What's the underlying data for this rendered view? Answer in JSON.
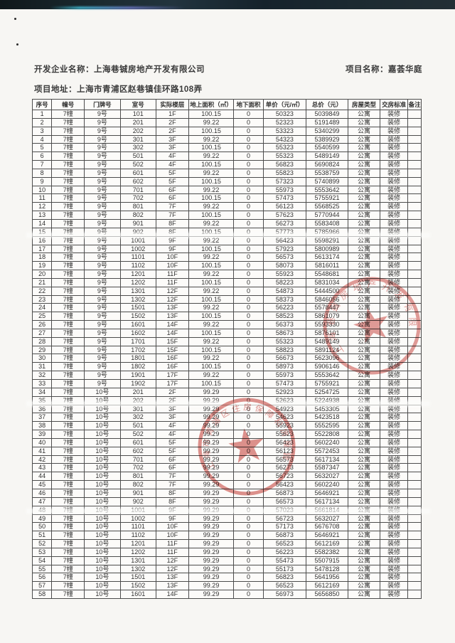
{
  "header": {
    "developer_label": "开发企业名称：",
    "developer_name": "上海巷铖房地产开发有限公司",
    "project_label": "项目名称：",
    "project_name": "嘉荟华庭",
    "address_label": "项目地址：",
    "address": "上海市青浦区赵巷镇佳环路108弄"
  },
  "stamps": [
    {
      "text": "上海巷铖房地产开发有限公司",
      "color": "#c8423c"
    },
    {
      "text": "上海市青浦区住房保障和房屋管理局",
      "color": "#c8423c"
    }
  ],
  "table": {
    "headers": [
      "序号",
      "幢号",
      "门牌号",
      "室号",
      "实际楼层",
      "地上面积（㎡）",
      "地下面积",
      "单价（元/㎡）",
      "总价（元）",
      "房屋类型",
      "交房标准",
      "备注"
    ],
    "rows": [
      [
        "1",
        "7幢",
        "9号",
        "101",
        "1F",
        "100.15",
        "0",
        "50323",
        "5039849",
        "公寓",
        "装修",
        ""
      ],
      [
        "2",
        "7幢",
        "9号",
        "201",
        "2F",
        "99.22",
        "0",
        "52323",
        "5191489",
        "公寓",
        "装修",
        ""
      ],
      [
        "3",
        "7幢",
        "9号",
        "202",
        "2F",
        "100.15",
        "0",
        "53323",
        "5340299",
        "公寓",
        "装修",
        ""
      ],
      [
        "4",
        "7幢",
        "9号",
        "301",
        "3F",
        "99.22",
        "0",
        "54323",
        "5389929",
        "公寓",
        "装修",
        ""
      ],
      [
        "5",
        "7幢",
        "9号",
        "302",
        "3F",
        "100.15",
        "0",
        "55323",
        "5540599",
        "公寓",
        "装修",
        ""
      ],
      [
        "6",
        "7幢",
        "9号",
        "501",
        "4F",
        "99.22",
        "0",
        "55323",
        "5489149",
        "公寓",
        "装修",
        ""
      ],
      [
        "7",
        "7幢",
        "9号",
        "502",
        "4F",
        "100.15",
        "0",
        "56823",
        "5690824",
        "公寓",
        "装修",
        ""
      ],
      [
        "8",
        "7幢",
        "9号",
        "601",
        "5F",
        "99.22",
        "0",
        "55823",
        "5538759",
        "公寓",
        "装修",
        ""
      ],
      [
        "9",
        "7幢",
        "9号",
        "602",
        "5F",
        "100.15",
        "0",
        "57323",
        "5740899",
        "公寓",
        "装修",
        ""
      ],
      [
        "10",
        "7幢",
        "9号",
        "701",
        "6F",
        "99.22",
        "0",
        "55973",
        "5553642",
        "公寓",
        "装修",
        ""
      ],
      [
        "11",
        "7幢",
        "9号",
        "702",
        "6F",
        "100.15",
        "0",
        "57473",
        "5755921",
        "公寓",
        "装修",
        ""
      ],
      [
        "12",
        "7幢",
        "9号",
        "801",
        "7F",
        "99.22",
        "0",
        "56123",
        "5568525",
        "公寓",
        "装修",
        ""
      ],
      [
        "13",
        "7幢",
        "9号",
        "802",
        "7F",
        "100.15",
        "0",
        "57623",
        "5770944",
        "公寓",
        "装修",
        ""
      ],
      [
        "14",
        "7幢",
        "9号",
        "901",
        "8F",
        "99.22",
        "0",
        "56273",
        "5583408",
        "公寓",
        "装修",
        ""
      ],
      [
        "15",
        "7幢",
        "9号",
        "902",
        "8F",
        "100.15",
        "0",
        "57773",
        "5785966",
        "公寓",
        "装修",
        ""
      ],
      [
        "16",
        "7幢",
        "9号",
        "1001",
        "9F",
        "99.22",
        "0",
        "56423",
        "5598291",
        "公寓",
        "装修",
        ""
      ],
      [
        "17",
        "7幢",
        "9号",
        "1002",
        "9F",
        "100.15",
        "0",
        "57923",
        "5800989",
        "公寓",
        "装修",
        ""
      ],
      [
        "18",
        "7幢",
        "9号",
        "1101",
        "10F",
        "99.22",
        "0",
        "56573",
        "5613174",
        "公寓",
        "装修",
        ""
      ],
      [
        "19",
        "7幢",
        "9号",
        "1102",
        "10F",
        "100.15",
        "0",
        "58073",
        "5816011",
        "公寓",
        "装修",
        ""
      ],
      [
        "20",
        "7幢",
        "9号",
        "1201",
        "11F",
        "99.22",
        "0",
        "55923",
        "5548681",
        "公寓",
        "装修",
        ""
      ],
      [
        "21",
        "7幢",
        "9号",
        "1202",
        "11F",
        "100.15",
        "0",
        "58223",
        "5831034",
        "公寓",
        "装修",
        ""
      ],
      [
        "22",
        "7幢",
        "9号",
        "1301",
        "12F",
        "99.22",
        "0",
        "54873",
        "5444500",
        "公寓",
        "装修",
        ""
      ],
      [
        "23",
        "7幢",
        "9号",
        "1302",
        "12F",
        "100.15",
        "0",
        "58373",
        "5846056",
        "公寓",
        "装修",
        ""
      ],
      [
        "24",
        "7幢",
        "9号",
        "1501",
        "13F",
        "99.22",
        "0",
        "56223",
        "5578447",
        "公寓",
        "装修",
        ""
      ],
      [
        "25",
        "7幢",
        "9号",
        "1502",
        "13F",
        "100.15",
        "0",
        "58523",
        "5861079",
        "公寓",
        "装修",
        ""
      ],
      [
        "26",
        "7幢",
        "9号",
        "1601",
        "14F",
        "99.22",
        "0",
        "56373",
        "5593330",
        "公寓",
        "装修",
        ""
      ],
      [
        "27",
        "7幢",
        "9号",
        "1602",
        "14F",
        "100.15",
        "0",
        "58673",
        "5876101",
        "公寓",
        "装修",
        ""
      ],
      [
        "28",
        "7幢",
        "9号",
        "1701",
        "15F",
        "99.22",
        "0",
        "55323",
        "5489149",
        "公寓",
        "装修",
        ""
      ],
      [
        "29",
        "7幢",
        "9号",
        "1702",
        "15F",
        "100.15",
        "0",
        "58823",
        "5891124",
        "公寓",
        "装修",
        ""
      ],
      [
        "30",
        "7幢",
        "9号",
        "1801",
        "16F",
        "99.22",
        "0",
        "56673",
        "5623096",
        "公寓",
        "装修",
        ""
      ],
      [
        "31",
        "7幢",
        "9号",
        "1802",
        "16F",
        "100.15",
        "0",
        "58973",
        "5906146",
        "公寓",
        "装修",
        ""
      ],
      [
        "32",
        "7幢",
        "9号",
        "1901",
        "17F",
        "99.22",
        "0",
        "55973",
        "5553642",
        "公寓",
        "装修",
        ""
      ],
      [
        "33",
        "7幢",
        "9号",
        "1902",
        "17F",
        "100.15",
        "0",
        "57473",
        "5755921",
        "公寓",
        "装修",
        ""
      ],
      [
        "34",
        "7幢",
        "10号",
        "201",
        "2F",
        "99.29",
        "0",
        "52923",
        "5254725",
        "公寓",
        "装修",
        ""
      ],
      [
        "35",
        "7幢",
        "10号",
        "202",
        "2F",
        "99.29",
        "0",
        "52623",
        "5224938",
        "公寓",
        "装修",
        ""
      ],
      [
        "36",
        "7幢",
        "10号",
        "301",
        "3F",
        "99.29",
        "0",
        "54923",
        "5453305",
        "公寓",
        "装修",
        ""
      ],
      [
        "37",
        "7幢",
        "10号",
        "302",
        "3F",
        "99.29",
        "0",
        "54623",
        "5423518",
        "公寓",
        "装修",
        ""
      ],
      [
        "38",
        "7幢",
        "10号",
        "501",
        "4F",
        "99.29",
        "0",
        "55923",
        "5552595",
        "公寓",
        "装修",
        ""
      ],
      [
        "39",
        "7幢",
        "10号",
        "502",
        "4F",
        "99.29",
        "0",
        "55623",
        "5522808",
        "公寓",
        "装修",
        ""
      ],
      [
        "40",
        "7幢",
        "10号",
        "601",
        "5F",
        "99.29",
        "0",
        "56423",
        "5602240",
        "公寓",
        "装修",
        ""
      ],
      [
        "41",
        "7幢",
        "10号",
        "602",
        "5F",
        "99.29",
        "0",
        "56123",
        "5572453",
        "公寓",
        "装修",
        ""
      ],
      [
        "42",
        "7幢",
        "10号",
        "701",
        "6F",
        "99.29",
        "0",
        "56573",
        "5617134",
        "公寓",
        "装修",
        ""
      ],
      [
        "43",
        "7幢",
        "10号",
        "702",
        "6F",
        "99.29",
        "0",
        "56273",
        "5587347",
        "公寓",
        "装修",
        ""
      ],
      [
        "44",
        "7幢",
        "10号",
        "801",
        "7F",
        "99.29",
        "0",
        "56723",
        "5632027",
        "公寓",
        "装修",
        ""
      ],
      [
        "45",
        "7幢",
        "10号",
        "802",
        "7F",
        "99.29",
        "0",
        "56423",
        "5602240",
        "公寓",
        "装修",
        ""
      ],
      [
        "46",
        "7幢",
        "10号",
        "901",
        "8F",
        "99.29",
        "0",
        "56873",
        "5646921",
        "公寓",
        "装修",
        ""
      ],
      [
        "47",
        "7幢",
        "10号",
        "902",
        "8F",
        "99.29",
        "0",
        "56573",
        "5617134",
        "公寓",
        "装修",
        ""
      ],
      [
        "48",
        "7幢",
        "10号",
        "1001",
        "9F",
        "99.29",
        "0",
        "57023",
        "5661814",
        "公寓",
        "装修",
        ""
      ],
      [
        "49",
        "7幢",
        "10号",
        "1002",
        "9F",
        "99.29",
        "0",
        "56723",
        "5632027",
        "公寓",
        "装修",
        ""
      ],
      [
        "50",
        "7幢",
        "10号",
        "1101",
        "10F",
        "99.29",
        "0",
        "57173",
        "5676708",
        "公寓",
        "装修",
        ""
      ],
      [
        "51",
        "7幢",
        "10号",
        "1102",
        "10F",
        "99.29",
        "0",
        "56873",
        "5646921",
        "公寓",
        "装修",
        ""
      ],
      [
        "52",
        "7幢",
        "10号",
        "1201",
        "11F",
        "99.29",
        "0",
        "56523",
        "5612169",
        "公寓",
        "装修",
        ""
      ],
      [
        "53",
        "7幢",
        "10号",
        "1202",
        "11F",
        "99.29",
        "0",
        "56223",
        "5582382",
        "公寓",
        "装修",
        ""
      ],
      [
        "54",
        "7幢",
        "10号",
        "1301",
        "12F",
        "99.29",
        "0",
        "55473",
        "5507915",
        "公寓",
        "装修",
        ""
      ],
      [
        "55",
        "7幢",
        "10号",
        "1302",
        "12F",
        "99.29",
        "0",
        "55173",
        "5478128",
        "公寓",
        "装修",
        ""
      ],
      [
        "56",
        "7幢",
        "10号",
        "1501",
        "13F",
        "99.29",
        "0",
        "56823",
        "5641956",
        "公寓",
        "装修",
        ""
      ],
      [
        "57",
        "7幢",
        "10号",
        "1502",
        "13F",
        "99.29",
        "0",
        "56523",
        "5612169",
        "公寓",
        "装修",
        ""
      ],
      [
        "58",
        "7幢",
        "10号",
        "1601",
        "14F",
        "99.29",
        "0",
        "56973",
        "5656850",
        "公寓",
        "装修",
        ""
      ]
    ]
  }
}
